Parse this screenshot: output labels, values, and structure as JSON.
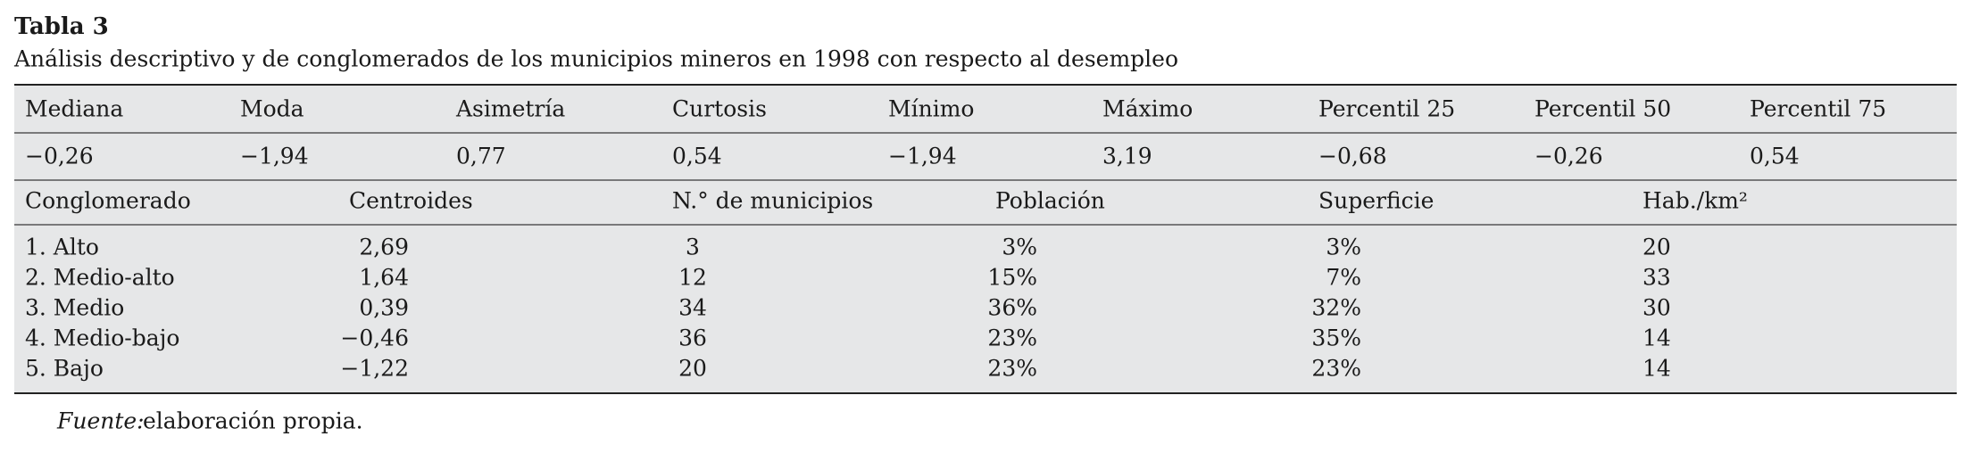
{
  "title": "Tabla 3",
  "caption": "Análisis descriptivo y de conglomerados de los municipios mineros en 1998 con respecto al desempleo",
  "descriptive": {
    "headers": [
      "Mediana",
      "Moda",
      "Asimetría",
      "Curtosis",
      "Mínimo",
      "Máximo",
      "Percentil 25",
      "Percentil 50",
      "Percentil 75"
    ],
    "values": [
      "−0,26",
      "−1,94",
      "0,77",
      "0,54",
      "−1,94",
      "3,19",
      "−0,68",
      "−0,26",
      "0,54"
    ]
  },
  "clusters": {
    "headers": [
      "Conglomerado",
      "Centroides",
      "N.° de municipios",
      "Población",
      "Superficie",
      "Hab./km²"
    ],
    "rows": [
      [
        "1. Alto",
        "2,69",
        "3",
        "3%",
        "3%",
        "20"
      ],
      [
        "2. Medio-alto",
        "1,64",
        "12",
        "15%",
        "7%",
        "33"
      ],
      [
        "3. Medio",
        "0,39",
        "34",
        "36%",
        "32%",
        "30"
      ],
      [
        "4. Medio-bajo",
        "−0,46",
        "36",
        "23%",
        "35%",
        "14"
      ],
      [
        "5. Bajo",
        "−1,22",
        "20",
        "23%",
        "23%",
        "14"
      ]
    ]
  },
  "footer": {
    "label": "Fuente:",
    "text": "elaboración propia."
  }
}
